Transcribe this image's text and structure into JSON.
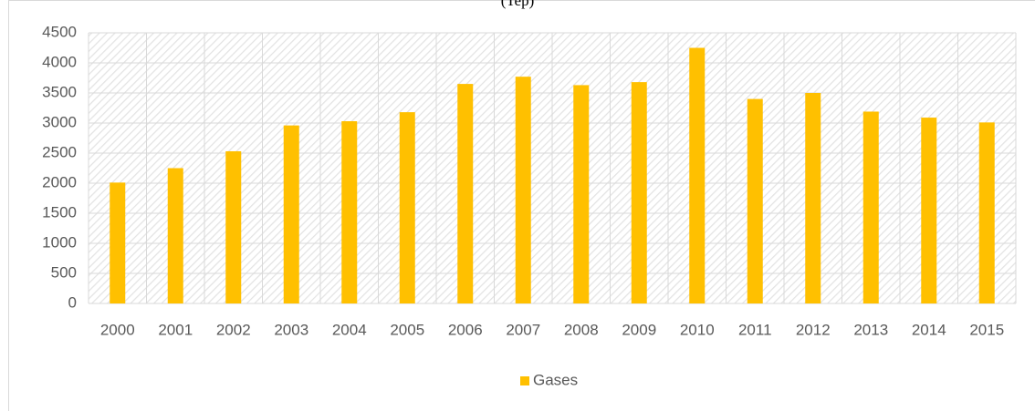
{
  "chart_data": {
    "type": "bar",
    "title": "(Tep)",
    "categories": [
      "2000",
      "2001",
      "2002",
      "2003",
      "2004",
      "2005",
      "2006",
      "2007",
      "2008",
      "2009",
      "2010",
      "2011",
      "2012",
      "2013",
      "2014",
      "2015"
    ],
    "series": [
      {
        "name": "Gases",
        "color": "#ffc000",
        "values": [
          2010,
          2250,
          2530,
          2960,
          3030,
          3180,
          3650,
          3770,
          3630,
          3680,
          4250,
          3400,
          3500,
          3190,
          3090,
          3010
        ]
      }
    ],
    "ylim": [
      0,
      4500
    ],
    "yticks": [
      0,
      500,
      1000,
      1500,
      2000,
      2500,
      3000,
      3500,
      4000,
      4500
    ],
    "grid": true,
    "legend": "bottom"
  }
}
